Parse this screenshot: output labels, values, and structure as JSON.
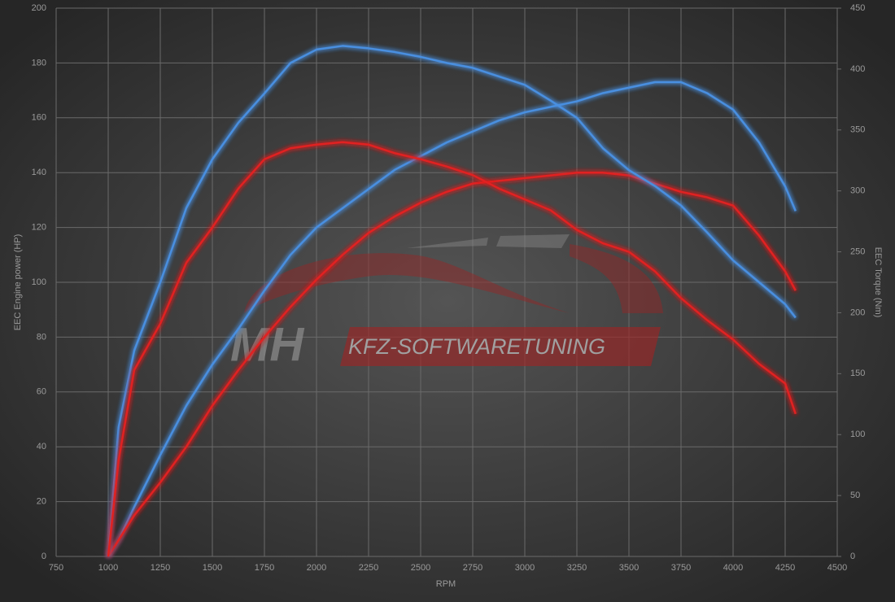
{
  "chart_data": {
    "type": "line",
    "xlabel": "RPM",
    "ylabel": "EEC Engine power (HP)",
    "y2label": "EEC Torque (Nm)",
    "watermark": {
      "logo": "MH",
      "text": "KFZ-SOFTWARETUNING"
    },
    "x": [
      1000,
      1050,
      1125,
      1250,
      1375,
      1500,
      1625,
      1750,
      1875,
      2000,
      2125,
      2250,
      2375,
      2500,
      2625,
      2750,
      2875,
      3000,
      3125,
      3250,
      3375,
      3500,
      3625,
      3750,
      3875,
      4000,
      4125,
      4250,
      4300
    ],
    "series": [
      {
        "color": "#4a8fe0",
        "values": [
          0,
          6,
          18,
          37,
          55,
          70,
          83,
          97,
          110,
          120,
          127,
          134,
          141,
          146,
          151,
          155,
          159,
          162,
          164,
          166,
          169,
          171,
          173,
          173,
          169,
          163,
          151,
          135,
          126
        ]
      },
      {
        "color": "#e02020",
        "values": [
          0,
          6,
          15,
          27,
          40,
          55,
          68,
          80,
          91,
          101,
          110,
          118,
          124,
          129,
          133,
          136,
          137,
          138,
          139,
          140,
          140,
          139,
          136,
          133,
          131,
          128,
          117,
          104,
          97
        ]
      },
      {
        "color": "#4a8fe0",
        "axis": "y2",
        "values": [
          0,
          106,
          169,
          225,
          286,
          326,
          356,
          380,
          405,
          416,
          419,
          417,
          414,
          410,
          405,
          401,
          394,
          387,
          374,
          360,
          335,
          317,
          304,
          288,
          266,
          243,
          225,
          207,
          196
        ]
      },
      {
        "color": "#e02020",
        "axis": "y2",
        "values": [
          0,
          79,
          153,
          191,
          241,
          270,
          302,
          326,
          335,
          338,
          340,
          338,
          331,
          326,
          320,
          313,
          302,
          293,
          284,
          268,
          257,
          250,
          234,
          212,
          194,
          178,
          158,
          142,
          117
        ]
      }
    ],
    "xlim": [
      750,
      4500
    ],
    "xticks": [
      750,
      1000,
      1250,
      1500,
      1750,
      2000,
      2250,
      2500,
      2750,
      3000,
      3250,
      3500,
      3750,
      4000,
      4250,
      4500
    ],
    "ylim": [
      0,
      200
    ],
    "yticks": [
      0,
      20,
      40,
      60,
      80,
      100,
      120,
      140,
      160,
      180,
      200
    ],
    "y2lim": [
      0,
      450
    ],
    "y2ticks": [
      0,
      50,
      100,
      150,
      200,
      250,
      300,
      350,
      400,
      450
    ],
    "grid": true
  }
}
